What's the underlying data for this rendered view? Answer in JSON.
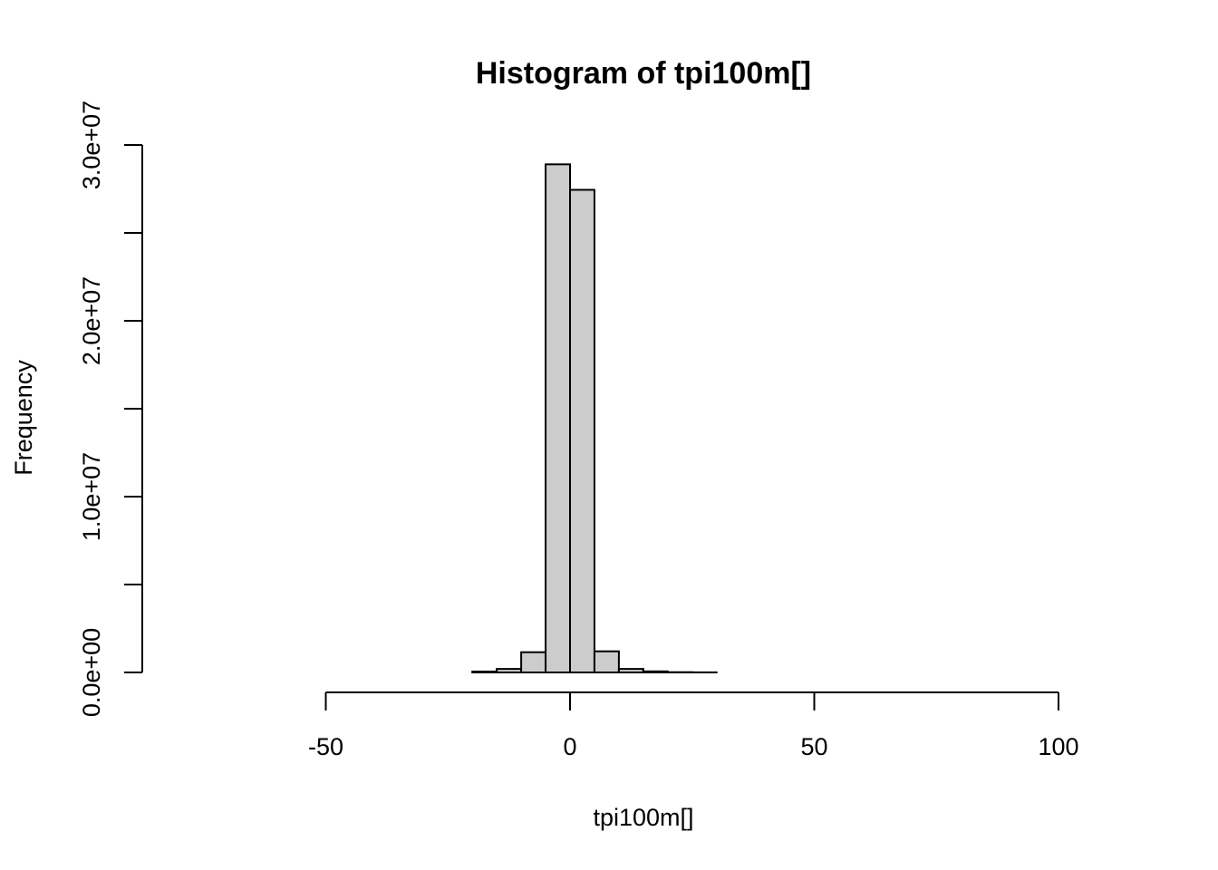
{
  "chart_data": {
    "type": "bar",
    "title": "Histogram of tpi100m[]",
    "xlabel": "tpi100m[]",
    "ylabel": "Frequency",
    "bin_width": 5,
    "bins": [
      [
        -80,
        -75,
        0
      ],
      [
        -75,
        -70,
        0
      ],
      [
        -70,
        -65,
        0
      ],
      [
        -65,
        -60,
        0
      ],
      [
        -60,
        -55,
        0
      ],
      [
        -55,
        -50,
        0
      ],
      [
        -50,
        -45,
        0
      ],
      [
        -45,
        -40,
        0
      ],
      [
        -40,
        -35,
        0
      ],
      [
        -35,
        -30,
        0
      ],
      [
        -30,
        -25,
        0
      ],
      [
        -25,
        -20,
        0
      ],
      [
        -20,
        -15,
        50000
      ],
      [
        -15,
        -10,
        200000
      ],
      [
        -10,
        -5,
        1150000
      ],
      [
        -5,
        0,
        28900000
      ],
      [
        0,
        5,
        27450000
      ],
      [
        5,
        10,
        1200000
      ],
      [
        10,
        15,
        200000
      ],
      [
        15,
        20,
        60000
      ],
      [
        20,
        25,
        15000
      ],
      [
        25,
        30,
        5000
      ],
      [
        30,
        35,
        0
      ],
      [
        35,
        40,
        0
      ],
      [
        40,
        45,
        0
      ],
      [
        45,
        50,
        0
      ],
      [
        50,
        55,
        0
      ],
      [
        55,
        60,
        0
      ],
      [
        60,
        65,
        0
      ],
      [
        65,
        70,
        0
      ],
      [
        70,
        75,
        0
      ],
      [
        75,
        80,
        0
      ],
      [
        80,
        85,
        0
      ],
      [
        85,
        90,
        0
      ],
      [
        90,
        95,
        0
      ],
      [
        95,
        100,
        0
      ],
      [
        100,
        105,
        0
      ],
      [
        105,
        110,
        0
      ]
    ],
    "x_ticks": [
      -50,
      0,
      50,
      100
    ],
    "x_tick_labels": [
      "-50",
      "0",
      "50",
      "100"
    ],
    "y_ticks": [
      0,
      5000000,
      10000000,
      15000000,
      20000000,
      25000000,
      30000000
    ],
    "y_tick_labels": [
      "0.0e+00",
      "",
      "1.0e+07",
      "",
      "2.0e+07",
      "",
      "3.0e+07"
    ],
    "xlim": [
      -80,
      110
    ],
    "ylim": [
      0,
      30000000
    ],
    "bar_color": "#cccccc",
    "grid": false,
    "legend": "none"
  }
}
